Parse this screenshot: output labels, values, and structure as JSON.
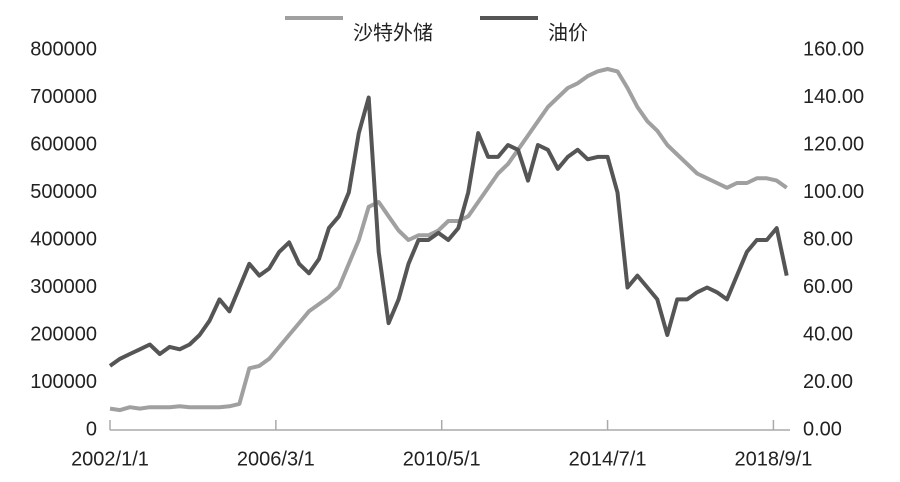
{
  "chart_data": {
    "type": "line",
    "legend_position": "top",
    "xlim": [
      "2002/1/1",
      "2019/2/1"
    ],
    "xticks": [
      "2002/1/1",
      "2006/3/1",
      "2010/5/1",
      "2014/7/1",
      "2018/9/1"
    ],
    "ylim": [
      0,
      800000
    ],
    "yticks": [
      0,
      100000,
      200000,
      300000,
      400000,
      500000,
      600000,
      700000,
      800000
    ],
    "y2lim": [
      0,
      160
    ],
    "y2ticks": [
      {
        "value": 0,
        "label": "0.00"
      },
      {
        "value": 20,
        "label": "20.00"
      },
      {
        "value": 40,
        "label": "40.00"
      },
      {
        "value": 60,
        "label": "60.00"
      },
      {
        "value": 80,
        "label": "80.00"
      },
      {
        "value": 100,
        "label": "100.00"
      },
      {
        "value": 120,
        "label": "120.00"
      },
      {
        "value": 140,
        "label": "140.00"
      },
      {
        "value": 160,
        "label": "160.00"
      }
    ],
    "x": [
      "2002/1/1",
      "2002/4/1",
      "2002/7/1",
      "2002/10/1",
      "2003/1/1",
      "2003/4/1",
      "2003/7/1",
      "2003/10/1",
      "2004/1/1",
      "2004/4/1",
      "2004/7/1",
      "2004/10/1",
      "2005/1/1",
      "2005/4/1",
      "2005/7/1",
      "2005/10/1",
      "2006/1/1",
      "2006/4/1",
      "2006/7/1",
      "2006/10/1",
      "2007/1/1",
      "2007/4/1",
      "2007/7/1",
      "2007/10/1",
      "2008/1/1",
      "2008/4/1",
      "2008/7/1",
      "2008/10/1",
      "2009/1/1",
      "2009/4/1",
      "2009/7/1",
      "2009/10/1",
      "2010/1/1",
      "2010/4/1",
      "2010/7/1",
      "2010/10/1",
      "2011/1/1",
      "2011/4/1",
      "2011/7/1",
      "2011/10/1",
      "2012/1/1",
      "2012/4/1",
      "2012/7/1",
      "2012/10/1",
      "2013/1/1",
      "2013/4/1",
      "2013/7/1",
      "2013/10/1",
      "2014/1/1",
      "2014/4/1",
      "2014/7/1",
      "2014/10/1",
      "2015/1/1",
      "2015/4/1",
      "2015/7/1",
      "2015/10/1",
      "2016/1/1",
      "2016/4/1",
      "2016/7/1",
      "2016/10/1",
      "2017/1/1",
      "2017/4/1",
      "2017/7/1",
      "2017/10/1",
      "2018/1/1",
      "2018/4/1",
      "2018/7/1",
      "2018/10/1",
      "2019/1/1"
    ],
    "series": [
      {
        "name": "沙特外储",
        "color": "#a0a0a0",
        "values": [
          45000,
          42000,
          48000,
          45000,
          48000,
          48000,
          48000,
          50000,
          48000,
          48000,
          48000,
          48000,
          50000,
          55000,
          130000,
          135000,
          150000,
          175000,
          200000,
          225000,
          250000,
          265000,
          280000,
          300000,
          350000,
          400000,
          470000,
          480000,
          450000,
          420000,
          400000,
          410000,
          410000,
          420000,
          440000,
          440000,
          450000,
          480000,
          510000,
          540000,
          560000,
          590000,
          620000,
          650000,
          680000,
          700000,
          720000,
          730000,
          745000,
          755000,
          760000,
          755000,
          720000,
          680000,
          650000,
          630000,
          600000,
          580000,
          560000,
          540000,
          530000,
          520000,
          510000,
          520000,
          520000,
          530000,
          530000,
          525000,
          510000
        ]
      },
      {
        "name": "油价",
        "color": "#555555",
        "axis": "y2",
        "values": [
          27,
          30,
          32,
          34,
          36,
          32,
          35,
          34,
          36,
          40,
          46,
          55,
          50,
          60,
          70,
          65,
          68,
          75,
          79,
          70,
          66,
          72,
          85,
          90,
          100,
          125,
          140,
          75,
          45,
          55,
          70,
          80,
          80,
          83,
          80,
          85,
          100,
          125,
          115,
          115,
          120,
          118,
          105,
          120,
          118,
          110,
          115,
          118,
          114,
          115,
          115,
          100,
          60,
          65,
          60,
          55,
          40,
          55,
          55,
          58,
          60,
          58,
          55,
          65,
          75,
          80,
          80,
          85,
          65
        ]
      }
    ]
  }
}
